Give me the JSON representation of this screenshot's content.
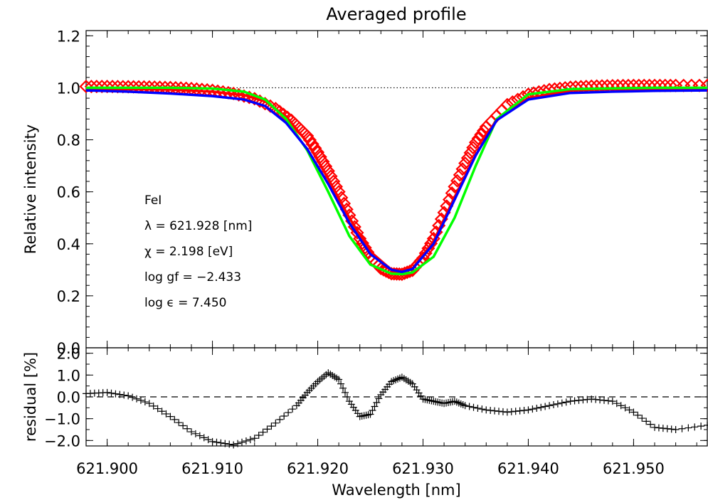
{
  "title": "Averaged profile",
  "chart_data": [
    {
      "type": "scatter",
      "panel": "main",
      "title": "Averaged profile",
      "xlabel": "",
      "ylabel": "Relative intensity",
      "xlim": [
        621.898,
        621.957
      ],
      "ylim": [
        0.0,
        1.22
      ],
      "yticks": [
        0.0,
        0.2,
        0.4,
        0.6,
        0.8,
        1.0,
        1.2
      ],
      "ytick_labels": [
        "0.0",
        "0.2",
        "0.4",
        "0.6",
        "0.8",
        "1.0",
        "1.2"
      ],
      "reference_line": {
        "y": 1.0,
        "style": "dotted"
      },
      "annotations": [
        "FeI",
        "λ = 621.928 [nm]",
        "χ =   2.198 [eV]",
        "log gf = −2.433",
        "log ϵ =   7.450"
      ],
      "series": [
        {
          "style": "diamond-markers",
          "color": "#ff0000",
          "x": [
            621.898,
            621.9,
            621.902,
            621.904,
            621.906,
            621.908,
            621.91,
            621.912,
            621.914,
            621.916,
            621.9175,
            621.919,
            621.92,
            621.921,
            621.922,
            621.923,
            621.924,
            621.925,
            621.926,
            621.927,
            621.928,
            621.929,
            621.93,
            621.931,
            621.932,
            621.933,
            621.934,
            621.935,
            621.936,
            621.938,
            621.94,
            621.942,
            621.944,
            621.946,
            621.948,
            621.95,
            621.952,
            621.954,
            621.957
          ],
          "y": [
            1.005,
            1.005,
            1.004,
            1.003,
            1.001,
            0.997,
            0.99,
            0.978,
            0.958,
            0.92,
            0.875,
            0.815,
            0.752,
            0.68,
            0.6,
            0.51,
            0.42,
            0.35,
            0.305,
            0.285,
            0.283,
            0.298,
            0.345,
            0.42,
            0.52,
            0.62,
            0.71,
            0.79,
            0.85,
            0.935,
            0.975,
            0.993,
            1.002,
            1.006,
            1.008,
            1.009,
            1.009,
            1.009,
            1.009
          ]
        },
        {
          "style": "line",
          "color": "#ff0000",
          "x": [
            621.898,
            621.902,
            621.906,
            621.91,
            621.913,
            621.915,
            621.917,
            621.919,
            621.921,
            621.923,
            621.925,
            621.927,
            621.928,
            621.929,
            621.931,
            621.933,
            621.935,
            621.937,
            621.94,
            621.944,
            621.948,
            621.952,
            621.957
          ],
          "y": [
            0.995,
            0.995,
            0.993,
            0.985,
            0.972,
            0.948,
            0.89,
            0.79,
            0.65,
            0.5,
            0.37,
            0.3,
            0.29,
            0.305,
            0.41,
            0.58,
            0.74,
            0.88,
            0.96,
            0.99,
            0.995,
            0.996,
            0.996
          ]
        },
        {
          "style": "line",
          "color": "#00ff00",
          "x": [
            621.898,
            621.902,
            621.906,
            621.91,
            621.913,
            621.915,
            621.917,
            621.919,
            621.921,
            621.923,
            621.925,
            621.927,
            621.928,
            621.929,
            621.931,
            621.933,
            621.935,
            621.937,
            621.94,
            621.944,
            621.948,
            621.952,
            621.957
          ],
          "y": [
            1.0,
            1.0,
            1.0,
            0.997,
            0.985,
            0.955,
            0.88,
            0.76,
            0.6,
            0.43,
            0.32,
            0.285,
            0.283,
            0.29,
            0.35,
            0.5,
            0.7,
            0.88,
            0.975,
            0.995,
            0.998,
            1.0,
            1.0
          ]
        },
        {
          "style": "line",
          "color": "#0000ff",
          "x": [
            621.898,
            621.902,
            621.906,
            621.91,
            621.913,
            621.915,
            621.917,
            621.919,
            621.921,
            621.923,
            621.925,
            621.927,
            621.928,
            621.929,
            621.931,
            621.933,
            621.935,
            621.937,
            621.94,
            621.944,
            621.948,
            621.952,
            621.957
          ],
          "y": [
            0.99,
            0.985,
            0.978,
            0.968,
            0.955,
            0.93,
            0.865,
            0.765,
            0.63,
            0.48,
            0.36,
            0.3,
            0.292,
            0.303,
            0.4,
            0.57,
            0.74,
            0.875,
            0.955,
            0.98,
            0.985,
            0.988,
            0.99
          ]
        }
      ]
    },
    {
      "type": "scatter",
      "panel": "residual",
      "xlabel": "Wavelength [nm]",
      "ylabel": "residual [%]",
      "xlim": [
        621.898,
        621.957
      ],
      "ylim": [
        -2.25,
        2.25
      ],
      "xticks": [
        621.9,
        621.91,
        621.92,
        621.93,
        621.94,
        621.95
      ],
      "xtick_labels": [
        "621.900",
        "621.910",
        "621.920",
        "621.930",
        "621.940",
        "621.950"
      ],
      "yticks": [
        -2.0,
        -1.0,
        0.0,
        1.0,
        2.0
      ],
      "ytick_labels": [
        "−2.0",
        "−1.0",
        "0.0",
        "1.0",
        "2.0"
      ],
      "reference_line": {
        "y": 0.0,
        "style": "dashed"
      },
      "series": [
        {
          "style": "plus-markers",
          "color": "#000000",
          "x": [
            621.898,
            621.9,
            621.902,
            621.904,
            621.906,
            621.908,
            621.91,
            621.912,
            621.914,
            621.916,
            621.918,
            621.919,
            621.92,
            621.921,
            621.922,
            621.923,
            621.924,
            621.925,
            621.926,
            621.927,
            621.928,
            621.929,
            621.93,
            621.931,
            621.932,
            621.933,
            621.934,
            621.936,
            621.938,
            621.94,
            621.942,
            621.944,
            621.946,
            621.948,
            621.95,
            621.952,
            621.954,
            621.957
          ],
          "y": [
            0.15,
            0.2,
            0.05,
            -0.3,
            -0.9,
            -1.6,
            -2.05,
            -2.2,
            -1.9,
            -1.2,
            -0.4,
            0.2,
            0.7,
            1.1,
            0.8,
            -0.2,
            -0.9,
            -0.8,
            0.1,
            0.7,
            0.9,
            0.6,
            -0.1,
            -0.2,
            -0.3,
            -0.2,
            -0.4,
            -0.6,
            -0.7,
            -0.6,
            -0.4,
            -0.2,
            -0.1,
            -0.2,
            -0.7,
            -1.4,
            -1.5,
            -1.3
          ]
        }
      ]
    }
  ]
}
